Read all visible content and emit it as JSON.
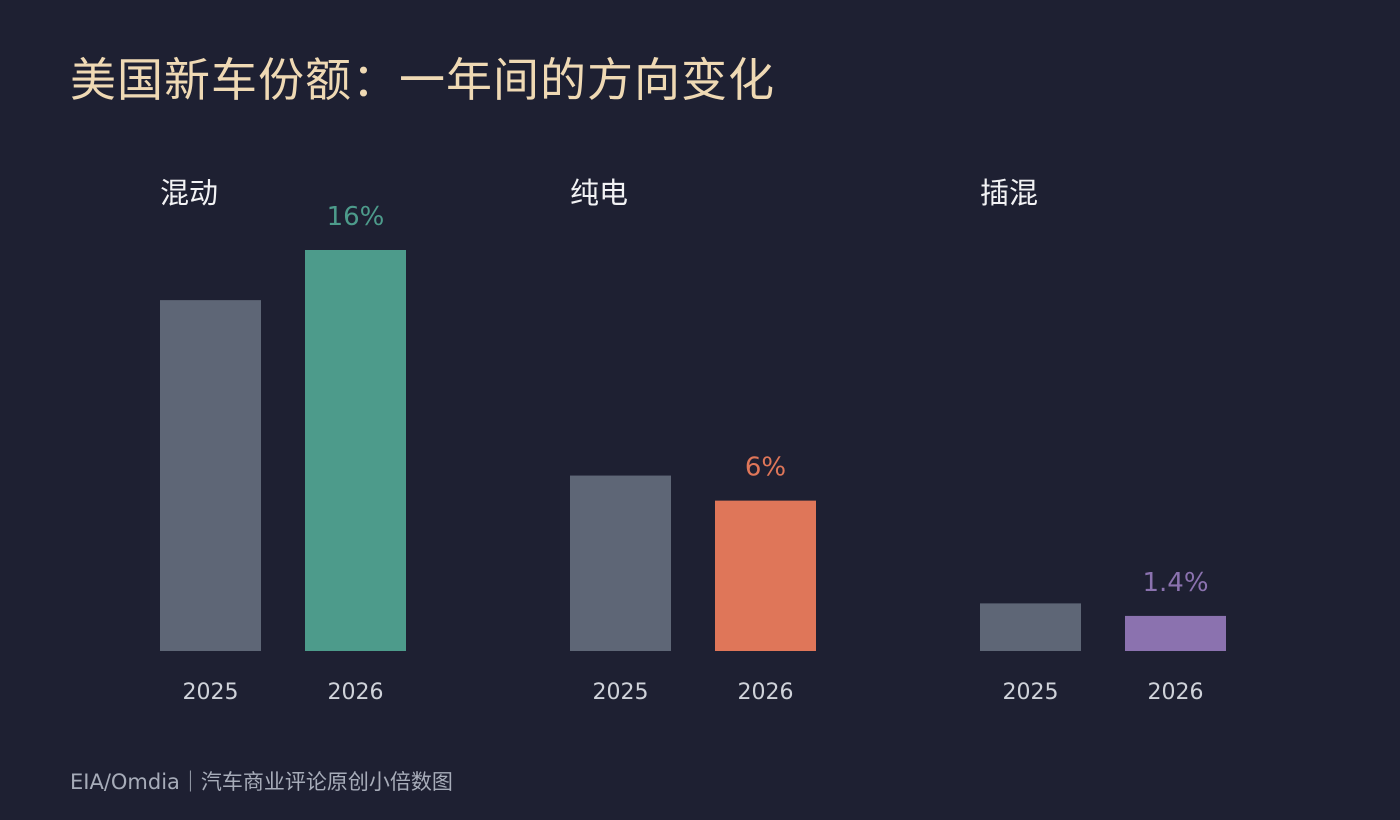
{
  "title": "美国新车份额：一年间的方向变化",
  "source": "EIA/Omdia｜汽车商业评论原创小倍数图",
  "chart_data": [
    {
      "type": "bar",
      "title": "混动",
      "categories": [
        "2025",
        "2026"
      ],
      "values": [
        14,
        16
      ],
      "value_labels": [
        "",
        "16%"
      ],
      "colors": [
        "#5e6676",
        "#4d9b8b"
      ],
      "label_color": "#4d9b8b",
      "ylim": [
        0,
        16
      ]
    },
    {
      "type": "bar",
      "title": "纯电",
      "categories": [
        "2025",
        "2026"
      ],
      "values": [
        7,
        6
      ],
      "value_labels": [
        "",
        "6%"
      ],
      "colors": [
        "#5e6676",
        "#df7659"
      ],
      "label_color": "#df7659",
      "ylim": [
        0,
        16
      ]
    },
    {
      "type": "bar",
      "title": "插混",
      "categories": [
        "2025",
        "2026"
      ],
      "values": [
        1.9,
        1.4
      ],
      "value_labels": [
        "",
        "1.4%"
      ],
      "colors": [
        "#5e6676",
        "#8b72af"
      ],
      "label_color": "#8b72af",
      "ylim": [
        0,
        16
      ]
    }
  ]
}
